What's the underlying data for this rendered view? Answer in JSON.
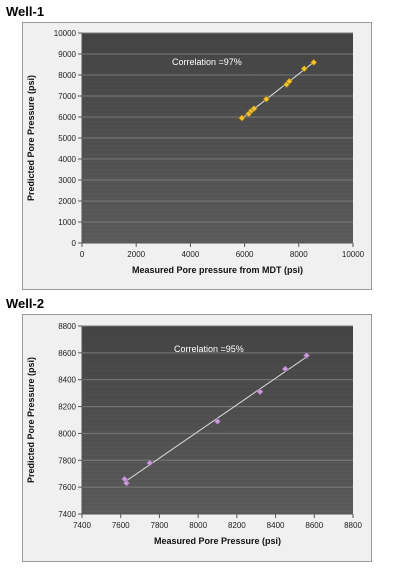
{
  "wells": [
    {
      "title": "Well-1"
    },
    {
      "title": "Well-2"
    }
  ],
  "colors": {
    "plot_bg_top": "#444444",
    "plot_bg_bottom": "#5c5c5c",
    "grid": "#7a7a7a",
    "outer_bg": "#f0f0f0",
    "chart1_marker": "#f2c232",
    "chart2_marker": "#c89ad8",
    "trendline": "#d9d9d9",
    "annotation": "#ffffff"
  },
  "chart_data": [
    {
      "type": "scatter",
      "title": "",
      "xlabel": "Measured Pore pressure from MDT (psi)",
      "ylabel": "Predicted Pore Pressure (psi)",
      "xlim": [
        0,
        10000
      ],
      "ylim": [
        0,
        10000
      ],
      "xticks": [
        0,
        2000,
        4000,
        6000,
        8000,
        10000
      ],
      "yticks": [
        0,
        1000,
        2000,
        3000,
        4000,
        5000,
        6000,
        7000,
        8000,
        9000,
        10000
      ],
      "annotation": "Correlation =97%",
      "grid": true,
      "trendline": true,
      "series": [
        {
          "x": [
            5900,
            6150,
            6250,
            6350,
            6800,
            7550,
            7650,
            8200,
            8550
          ],
          "y": [
            5950,
            6150,
            6300,
            6400,
            6850,
            7550,
            7700,
            8300,
            8600
          ]
        }
      ]
    },
    {
      "type": "scatter",
      "title": "",
      "xlabel": "Measured Pore Pressure (psi)",
      "ylabel": "Predicted Pore Pressure (psi)",
      "xlim": [
        7400,
        8800
      ],
      "ylim": [
        7400,
        8800
      ],
      "xticks": [
        7400,
        7600,
        7800,
        8000,
        8200,
        8400,
        8600,
        8800
      ],
      "yticks": [
        7400,
        7600,
        7800,
        8000,
        8200,
        8400,
        8600,
        8800
      ],
      "annotation": "Correlation =95%",
      "grid": true,
      "trendline": true,
      "series": [
        {
          "x": [
            7620,
            7630,
            7750,
            8100,
            8320,
            8450,
            8560
          ],
          "y": [
            7660,
            7630,
            7780,
            8090,
            8310,
            8480,
            8580
          ]
        }
      ]
    }
  ]
}
